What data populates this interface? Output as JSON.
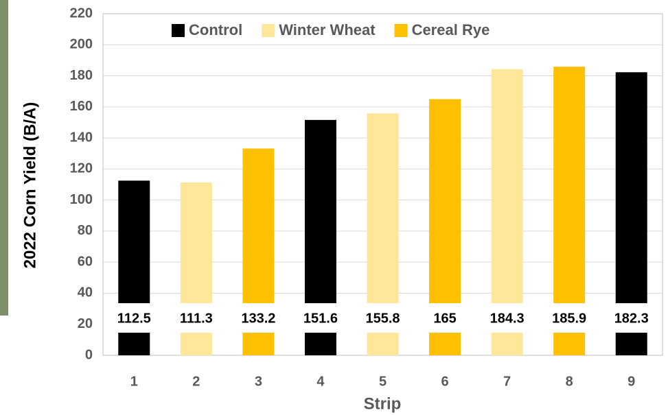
{
  "chart_data": {
    "type": "bar",
    "x_label": "Strip",
    "y_label": "2022 Corn Yield (B/A)",
    "categories": [
      "1",
      "2",
      "3",
      "4",
      "5",
      "6",
      "7",
      "8",
      "9"
    ],
    "series": [
      {
        "name": "Control",
        "color": "#000000",
        "values": [
          112.5,
          null,
          null,
          151.6,
          null,
          null,
          null,
          null,
          182.3
        ]
      },
      {
        "name": "Winter Wheat",
        "color": "#ffe699",
        "values": [
          null,
          111.3,
          null,
          null,
          155.8,
          null,
          184.3,
          null,
          null
        ]
      },
      {
        "name": "Cereal Rye",
        "color": "#ffc000",
        "values": [
          null,
          null,
          133.2,
          null,
          null,
          165,
          null,
          185.9,
          null
        ]
      }
    ],
    "ylim": [
      0,
      220
    ],
    "yticks": [
      0,
      20,
      40,
      60,
      80,
      100,
      120,
      140,
      160,
      180,
      200,
      220
    ],
    "grid": true,
    "legend": "top"
  }
}
